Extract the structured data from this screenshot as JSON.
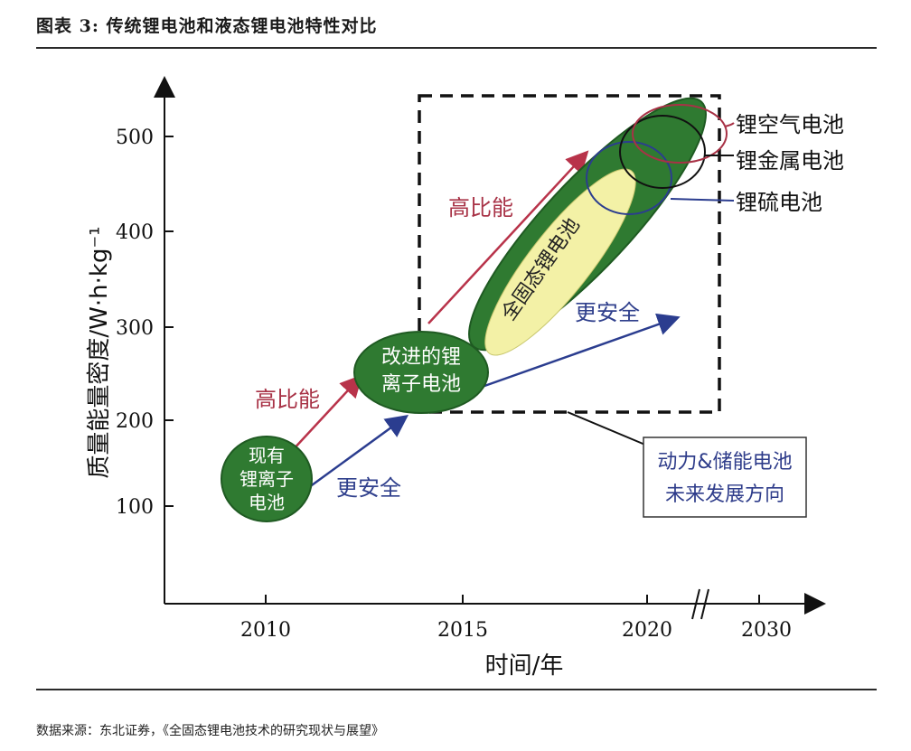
{
  "title": "图表 3: 传统锂电池和液态锂电池特性对比",
  "source": "数据来源：东北证券，《全固态锂电池技术的研究现状与展望》",
  "axes": {
    "ylabel": "质量能量密度/W·h·kg⁻¹",
    "xlabel": "时间/年",
    "y_ticks": [
      "500",
      "400",
      "300",
      "200",
      "100"
    ],
    "x_ticks": [
      "2010",
      "2015",
      "2020",
      "2030"
    ]
  },
  "nodes": {
    "current": [
      "现有",
      "锂离子",
      "电池"
    ],
    "improved": [
      "改进的锂",
      "离子电池"
    ],
    "solid_state": "全固态锂电池"
  },
  "arrows": {
    "high_energy_1": "高比能",
    "safer_1": "更安全",
    "high_energy_2": "高比能",
    "safer_2": "更安全"
  },
  "batteries": {
    "li_air": "锂空气电池",
    "li_metal": "锂金属电池",
    "li_sulfur": "锂硫电池"
  },
  "future_box": [
    "动力&储能电池",
    "未来发展方向"
  ],
  "colors": {
    "dark_green": "#2f7a31",
    "light_yellow": "#f3f1a6",
    "red_arrow": "#b8334a",
    "blue_arrow": "#2b3d8f",
    "red_label": "#a83246",
    "blue_label": "#2f3f8c",
    "future_text": "#2e3c8a"
  }
}
